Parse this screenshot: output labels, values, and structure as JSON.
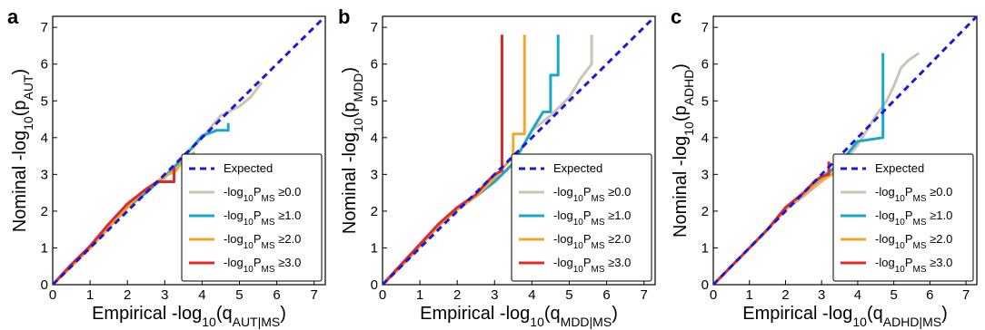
{
  "chart_data": [
    {
      "type": "line",
      "panel_label": "a",
      "ylabel": {
        "prefix": "Nominal -log",
        "sub1": "10",
        "mid": "(p",
        "sub2": "AUT",
        "suffix": ")"
      },
      "xlabel": {
        "prefix": "Empirical -log",
        "sub1": "10",
        "mid": "(q",
        "sub2": "AUT|MS",
        "suffix": ")"
      },
      "xlim": [
        0,
        7.3
      ],
      "ylim": [
        0,
        7.3
      ],
      "xticks": [
        "0",
        "1",
        "2",
        "3",
        "4",
        "5",
        "6",
        "7"
      ],
      "yticks": [
        "0",
        "1",
        "2",
        "3",
        "4",
        "5",
        "6",
        "7"
      ],
      "legend_placement": "lower-right",
      "expected": {
        "name": "Expected",
        "color": "#1a1adb",
        "x": [
          0,
          7.3
        ],
        "y": [
          0,
          7.3
        ]
      },
      "series": [
        {
          "threshold": "0.0",
          "color": "#ccc5b5",
          "x": [
            0,
            0.5,
            1.0,
            1.5,
            2.0,
            2.5,
            3.0,
            3.5,
            4.0,
            4.5,
            5.0,
            5.3,
            5.6
          ],
          "y": [
            0,
            0.5,
            1.0,
            1.55,
            2.1,
            2.55,
            2.9,
            3.45,
            4.0,
            4.6,
            4.85,
            5.1,
            5.5
          ]
        },
        {
          "threshold": "1.0",
          "color": "#1aa7c9",
          "x": [
            0,
            0.5,
            1.0,
            1.5,
            2.0,
            2.5,
            3.0,
            3.5,
            4.0,
            4.4,
            4.7,
            4.7
          ],
          "y": [
            0,
            0.5,
            1.0,
            1.55,
            2.1,
            2.5,
            2.95,
            3.45,
            4.05,
            4.2,
            4.2,
            4.4
          ]
        },
        {
          "threshold": "2.0",
          "color": "#f0a830",
          "x": [
            0,
            0.5,
            1.0,
            1.5,
            2.0,
            2.5,
            3.0,
            3.3,
            3.5,
            3.8
          ],
          "y": [
            0,
            0.5,
            1.0,
            1.55,
            2.1,
            2.6,
            2.95,
            3.1,
            3.4,
            3.6
          ]
        },
        {
          "threshold": "3.0",
          "color": "#e02a2a",
          "x": [
            0,
            0.5,
            1.0,
            1.5,
            2.0,
            2.5,
            2.8,
            3.25,
            3.25
          ],
          "y": [
            0,
            0.55,
            1.05,
            1.65,
            2.2,
            2.6,
            2.8,
            2.8,
            3.2
          ]
        }
      ]
    },
    {
      "type": "line",
      "panel_label": "b",
      "ylabel": {
        "prefix": "Nominal -log",
        "sub1": "10",
        "mid": "(p",
        "sub2": "MDD",
        "suffix": ")"
      },
      "xlabel": {
        "prefix": "Empirical -log",
        "sub1": "10",
        "mid": "(q",
        "sub2": "MDD|MS",
        "suffix": ")"
      },
      "xlim": [
        0,
        7.3
      ],
      "ylim": [
        0,
        7.3
      ],
      "xticks": [
        "0",
        "1",
        "2",
        "3",
        "4",
        "5",
        "6",
        "7"
      ],
      "yticks": [
        "0",
        "1",
        "2",
        "3",
        "4",
        "5",
        "6",
        "7"
      ],
      "legend_placement": "lower-right",
      "expected": {
        "name": "Expected",
        "color": "#1a1adb",
        "x": [
          0,
          7.3
        ],
        "y": [
          0,
          7.3
        ]
      },
      "series": [
        {
          "threshold": "0.0",
          "color": "#ccc5b5",
          "x": [
            0,
            0.5,
            1.0,
            1.5,
            2.0,
            2.5,
            3.0,
            3.5,
            4.0,
            4.5,
            5.0,
            5.3,
            5.6,
            5.6
          ],
          "y": [
            0,
            0.5,
            1.05,
            1.6,
            2.05,
            2.4,
            2.8,
            3.3,
            4.2,
            4.6,
            5.1,
            5.6,
            6.0,
            6.8
          ]
        },
        {
          "threshold": "1.0",
          "color": "#1aa7c9",
          "x": [
            0,
            0.5,
            1.0,
            1.5,
            2.0,
            2.5,
            3.0,
            3.5,
            4.0,
            4.3,
            4.5,
            4.5,
            4.7,
            4.7
          ],
          "y": [
            0,
            0.5,
            1.05,
            1.6,
            2.05,
            2.4,
            2.8,
            3.3,
            4.2,
            4.7,
            4.7,
            5.7,
            5.7,
            6.8
          ]
        },
        {
          "threshold": "2.0",
          "color": "#f0a830",
          "x": [
            0,
            0.5,
            1.0,
            1.5,
            2.0,
            2.5,
            3.0,
            3.5,
            3.5,
            3.8,
            3.8
          ],
          "y": [
            0,
            0.5,
            1.05,
            1.6,
            2.05,
            2.4,
            2.9,
            3.5,
            4.1,
            4.1,
            6.8
          ]
        },
        {
          "threshold": "3.0",
          "color": "#e02a2a",
          "x": [
            0,
            0.5,
            1.0,
            1.5,
            2.0,
            2.5,
            2.8,
            3.0,
            3.2,
            3.2
          ],
          "y": [
            0,
            0.55,
            1.1,
            1.65,
            2.1,
            2.45,
            2.8,
            3.0,
            3.1,
            6.8
          ]
        }
      ]
    },
    {
      "type": "line",
      "panel_label": "c",
      "ylabel": {
        "prefix": "Nominal -log",
        "sub1": "10",
        "mid": "(p",
        "sub2": "ADHD",
        "suffix": ")"
      },
      "xlabel": {
        "prefix": "Empirical -log",
        "sub1": "10",
        "mid": "(q",
        "sub2": "ADHD|MS",
        "suffix": ")"
      },
      "xlim": [
        0,
        7.3
      ],
      "ylim": [
        0,
        7.3
      ],
      "xticks": [
        "0",
        "1",
        "2",
        "3",
        "4",
        "5",
        "6",
        "7"
      ],
      "yticks": [
        "0",
        "1",
        "2",
        "3",
        "4",
        "5",
        "6",
        "7"
      ],
      "legend_placement": "lower-right",
      "expected": {
        "name": "Expected",
        "color": "#1a1adb",
        "x": [
          0,
          7.3
        ],
        "y": [
          0,
          7.3
        ]
      },
      "series": [
        {
          "threshold": "0.0",
          "color": "#ccc5b5",
          "x": [
            0,
            0.5,
            1.0,
            1.5,
            2.0,
            2.5,
            3.0,
            3.5,
            4.0,
            4.5,
            4.8,
            5.0,
            5.2,
            5.4,
            5.7
          ],
          "y": [
            0,
            0.5,
            1.0,
            1.5,
            2.05,
            2.4,
            2.8,
            3.2,
            3.8,
            4.6,
            5.0,
            5.4,
            5.9,
            6.1,
            6.3
          ]
        },
        {
          "threshold": "1.0",
          "color": "#1aa7c9",
          "x": [
            0,
            0.5,
            1.0,
            1.5,
            2.0,
            2.5,
            3.0,
            3.5,
            4.0,
            4.7,
            4.7
          ],
          "y": [
            0,
            0.5,
            1.0,
            1.5,
            2.05,
            2.45,
            2.9,
            3.3,
            3.9,
            4.0,
            6.3
          ]
        },
        {
          "threshold": "2.0",
          "color": "#f0a830",
          "x": [
            0,
            0.5,
            1.0,
            1.5,
            2.0,
            2.5,
            3.0,
            3.5,
            3.8,
            3.8
          ],
          "y": [
            0,
            0.5,
            1.0,
            1.5,
            2.05,
            2.45,
            2.85,
            3.1,
            3.1,
            3.3
          ]
        },
        {
          "threshold": "3.0",
          "color": "#e02a2a",
          "x": [
            0,
            0.5,
            1.0,
            1.5,
            2.0,
            2.5,
            2.8,
            3.0,
            3.2,
            3.2
          ],
          "y": [
            0,
            0.5,
            1.0,
            1.5,
            2.1,
            2.5,
            2.8,
            2.95,
            3.0,
            3.35
          ]
        }
      ]
    }
  ],
  "legend": {
    "expected_label": "Expected",
    "series_prefix": "-log",
    "series_sub1": "10",
    "series_var": "P",
    "series_sub2": "MS",
    "series_op": "≥"
  }
}
